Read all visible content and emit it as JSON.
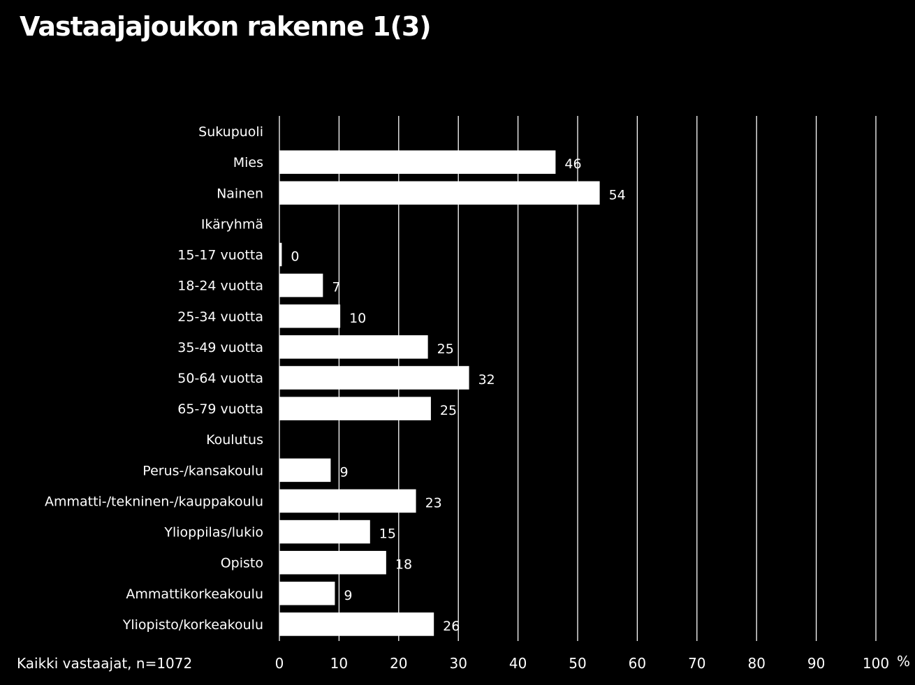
{
  "title": "Vastaajajoukon rakenne 1(3)",
  "footnote": "Kaikki vastaajat, n=1072",
  "colors": {
    "background": "#000000",
    "bar": "#ffffff",
    "text": "#ffffff",
    "grid": "#ffffff"
  },
  "chart_data": {
    "type": "bar",
    "orientation": "horizontal",
    "title": "Vastaajajoukon rakenne 1(3)",
    "xlabel": "%",
    "ylabel": "",
    "xlim": [
      0,
      100
    ],
    "x_ticks": [
      0,
      10,
      20,
      30,
      40,
      50,
      60,
      70,
      80,
      90,
      100
    ],
    "grid": true,
    "categories": [
      "Sukupuoli",
      "Mies",
      "Nainen",
      "Ikäryhmä",
      "15-17 vuotta",
      "18-24 vuotta",
      "25-34 vuotta",
      "35-49 vuotta",
      "50-64 vuotta",
      "65-79 vuotta",
      "Koulutus",
      "Perus-/kansakoulu",
      "Ammatti-/tekninen-/kauppakoulu",
      "Ylioppilas/lukio",
      "Opisto",
      "Ammattikorkeakoulu",
      "Yliopisto/korkeakoulu"
    ],
    "values": [
      null,
      46,
      54,
      null,
      0,
      7,
      10,
      25,
      32,
      25,
      null,
      9,
      23,
      15,
      18,
      9,
      26
    ],
    "value_labels": [
      "",
      "46",
      "54",
      "",
      "0",
      "7",
      "10",
      "25",
      "32",
      "25",
      "",
      "9",
      "23",
      "15",
      "18",
      "9",
      "26"
    ],
    "bar_lengths": [
      null,
      46.3,
      53.7,
      null,
      0.4,
      7.3,
      10.2,
      24.9,
      31.8,
      25.4,
      null,
      8.6,
      22.9,
      15.2,
      17.9,
      9.3,
      25.9
    ]
  }
}
